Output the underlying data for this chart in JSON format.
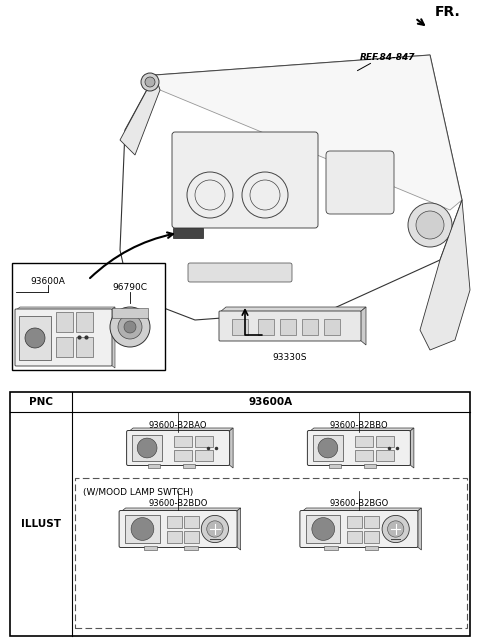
{
  "bg_color": "#ffffff",
  "fr_label": "FR.",
  "ref_label": "REF.84-847",
  "label_93600A": "93600A",
  "label_96790C": "96790C",
  "label_93330S": "93330S",
  "table_pnc": "PNC",
  "table_col": "93600A",
  "table_row": "ILLUST",
  "parts_top": [
    "93600-B2BAO",
    "93600-B2BBO"
  ],
  "parts_bottom": [
    "93600-B2BDO",
    "93600-B2BGO"
  ],
  "mood_label": "(W/MOOD LAMP SWTCH)"
}
